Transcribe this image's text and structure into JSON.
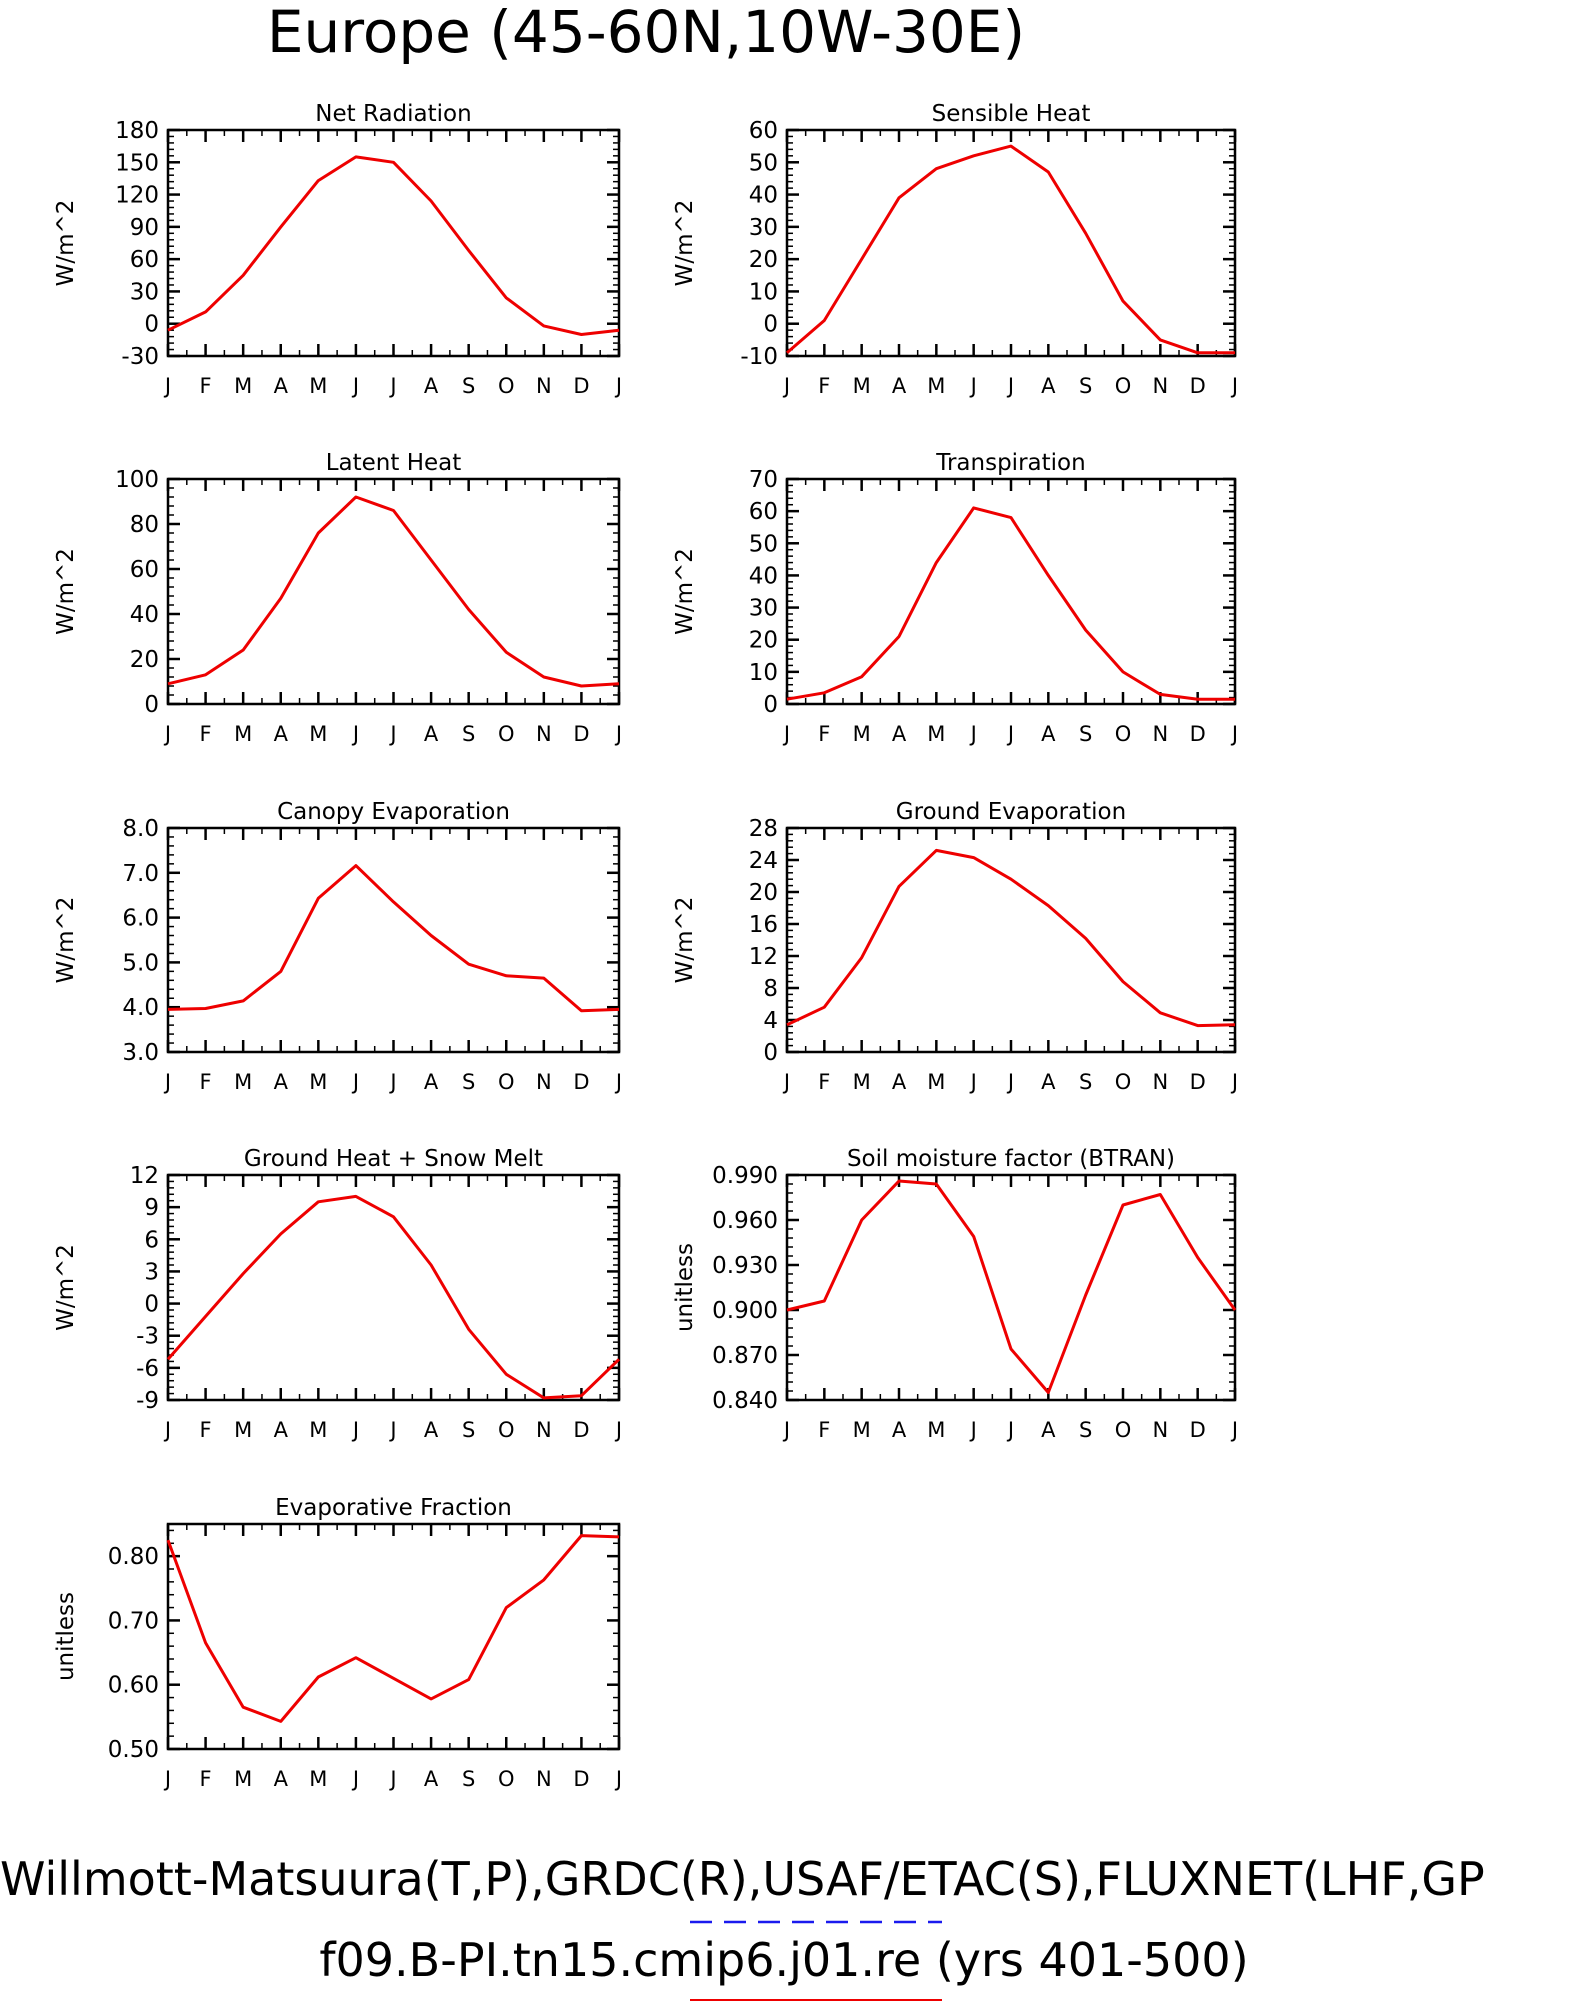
{
  "page": {
    "title": "Europe (45-60N,10W-30E)",
    "footer_line1": "Willmott-Matsuura(T,P),GRDC(R),USAF/ETAC(S),FLUXNET(LHF,GP",
    "footer_line2": "f09.B-PI.tn15.cmip6.j01.re (yrs 401-500)",
    "colors": {
      "series": "#ee0000",
      "axis": "#000000",
      "legend_dash": "#1a1aee"
    }
  },
  "chart_data": [
    {
      "type": "line",
      "title": "Net Radiation",
      "ylabel": "W/m^2",
      "xlabel": "",
      "ylim": [
        -30,
        180
      ],
      "yticks": [
        -30,
        0,
        30,
        60,
        90,
        120,
        150,
        180
      ],
      "ytick_labels": [
        "-30",
        "0",
        "30",
        "60",
        "90",
        "120",
        "150",
        "180"
      ],
      "categories": [
        "J",
        "F",
        "M",
        "A",
        "M",
        "J",
        "J",
        "A",
        "S",
        "O",
        "N",
        "D",
        "J"
      ],
      "series": [
        {
          "values": [
            -6,
            11,
            45,
            90,
            133,
            155,
            150,
            114,
            68,
            24,
            -2,
            -10,
            -6
          ]
        }
      ]
    },
    {
      "type": "line",
      "title": "Sensible Heat",
      "ylabel": "W/m^2",
      "xlabel": "",
      "ylim": [
        -10,
        60
      ],
      "yticks": [
        -10,
        0,
        10,
        20,
        30,
        40,
        50,
        60
      ],
      "ytick_labels": [
        "-10",
        "0",
        "10",
        "20",
        "30",
        "40",
        "50",
        "60"
      ],
      "categories": [
        "J",
        "F",
        "M",
        "A",
        "M",
        "J",
        "J",
        "A",
        "S",
        "O",
        "N",
        "D",
        "J"
      ],
      "series": [
        {
          "values": [
            -9,
            1,
            20,
            39,
            48,
            52,
            55,
            47,
            28,
            7,
            -5,
            -9,
            -9
          ]
        }
      ]
    },
    {
      "type": "line",
      "title": "Latent Heat",
      "ylabel": "W/m^2",
      "xlabel": "",
      "ylim": [
        0,
        100
      ],
      "yticks": [
        0,
        20,
        40,
        60,
        80,
        100
      ],
      "ytick_labels": [
        "0",
        "20",
        "40",
        "60",
        "80",
        "100"
      ],
      "categories": [
        "J",
        "F",
        "M",
        "A",
        "M",
        "J",
        "J",
        "A",
        "S",
        "O",
        "N",
        "D",
        "J"
      ],
      "series": [
        {
          "values": [
            9,
            13,
            24,
            47,
            76,
            92,
            86,
            64,
            42,
            23,
            12,
            8,
            9
          ]
        }
      ]
    },
    {
      "type": "line",
      "title": "Transpiration",
      "ylabel": "W/m^2",
      "xlabel": "",
      "ylim": [
        0,
        70
      ],
      "yticks": [
        0,
        10,
        20,
        30,
        40,
        50,
        60,
        70
      ],
      "ytick_labels": [
        "0",
        "10",
        "20",
        "30",
        "40",
        "50",
        "60",
        "70"
      ],
      "categories": [
        "J",
        "F",
        "M",
        "A",
        "M",
        "J",
        "J",
        "A",
        "S",
        "O",
        "N",
        "D",
        "J"
      ],
      "series": [
        {
          "values": [
            1.5,
            3.5,
            8.5,
            21,
            44,
            61,
            58,
            40,
            23,
            10,
            3,
            1.5,
            1.5
          ]
        }
      ]
    },
    {
      "type": "line",
      "title": "Canopy Evaporation",
      "ylabel": "W/m^2",
      "xlabel": "",
      "ylim": [
        3.0,
        8.0
      ],
      "yticks": [
        3,
        4,
        5,
        6,
        7,
        8
      ],
      "ytick_labels": [
        "3.0",
        "4.0",
        "5.0",
        "6.0",
        "7.0",
        "8.0"
      ],
      "categories": [
        "J",
        "F",
        "M",
        "A",
        "M",
        "J",
        "J",
        "A",
        "S",
        "O",
        "N",
        "D",
        "J"
      ],
      "series": [
        {
          "values": [
            3.95,
            3.97,
            4.14,
            4.8,
            6.43,
            7.16,
            6.35,
            5.6,
            4.96,
            4.7,
            4.65,
            3.92,
            3.95
          ]
        }
      ]
    },
    {
      "type": "line",
      "title": "Ground Evaporation",
      "ylabel": "W/m^2",
      "xlabel": "",
      "ylim": [
        0,
        28
      ],
      "yticks": [
        0,
        4,
        8,
        12,
        16,
        20,
        24,
        28
      ],
      "ytick_labels": [
        "0",
        "4",
        "8",
        "12",
        "16",
        "20",
        "24",
        "28"
      ],
      "categories": [
        "J",
        "F",
        "M",
        "A",
        "M",
        "J",
        "J",
        "A",
        "S",
        "O",
        "N",
        "D",
        "J"
      ],
      "series": [
        {
          "values": [
            3.4,
            5.6,
            11.8,
            20.7,
            25.2,
            24.3,
            21.6,
            18.3,
            14.2,
            8.8,
            4.9,
            3.3,
            3.4
          ]
        }
      ]
    },
    {
      "type": "line",
      "title": "Ground Heat + Snow Melt",
      "ylabel": "W/m^2",
      "xlabel": "",
      "ylim": [
        -9,
        12
      ],
      "yticks": [
        -9,
        -6,
        -3,
        0,
        3,
        6,
        9,
        12
      ],
      "ytick_labels": [
        "-9",
        "-6",
        "-3",
        "0",
        "3",
        "6",
        "9",
        "12"
      ],
      "categories": [
        "J",
        "F",
        "M",
        "A",
        "M",
        "J",
        "J",
        "A",
        "S",
        "O",
        "N",
        "D",
        "J"
      ],
      "series": [
        {
          "values": [
            -5.2,
            -1.2,
            2.8,
            6.5,
            9.5,
            10,
            8.1,
            3.6,
            -2.4,
            -6.6,
            -8.8,
            -8.6,
            -5.2
          ]
        }
      ]
    },
    {
      "type": "line",
      "title": "Soil moisture factor (BTRAN)",
      "ylabel": "unitless",
      "xlabel": "",
      "ylim": [
        0.84,
        0.99
      ],
      "yticks": [
        0.84,
        0.87,
        0.9,
        0.93,
        0.96,
        0.99
      ],
      "ytick_labels": [
        "0.840",
        "0.870",
        "0.900",
        "0.930",
        "0.960",
        "0.990"
      ],
      "categories": [
        "J",
        "F",
        "M",
        "A",
        "M",
        "J",
        "J",
        "A",
        "S",
        "O",
        "N",
        "D",
        "J"
      ],
      "series": [
        {
          "values": [
            0.9,
            0.906,
            0.96,
            0.986,
            0.984,
            0.949,
            0.874,
            0.845,
            0.91,
            0.97,
            0.977,
            0.935,
            0.9
          ]
        }
      ]
    },
    {
      "type": "line",
      "title": "Evaporative Fraction",
      "ylabel": "unitless",
      "xlabel": "",
      "ylim": [
        0.5,
        0.85
      ],
      "yticks": [
        0.5,
        0.6,
        0.7,
        0.8
      ],
      "ytick_labels": [
        "0.50",
        "0.60",
        "0.70",
        "0.80"
      ],
      "categories": [
        "J",
        "F",
        "M",
        "A",
        "M",
        "J",
        "J",
        "A",
        "S",
        "O",
        "N",
        "D",
        "J"
      ],
      "series": [
        {
          "values": [
            0.825,
            0.665,
            0.565,
            0.543,
            0.612,
            0.642,
            0.61,
            0.578,
            0.608,
            0.72,
            0.763,
            0.832,
            0.83
          ]
        }
      ]
    }
  ]
}
